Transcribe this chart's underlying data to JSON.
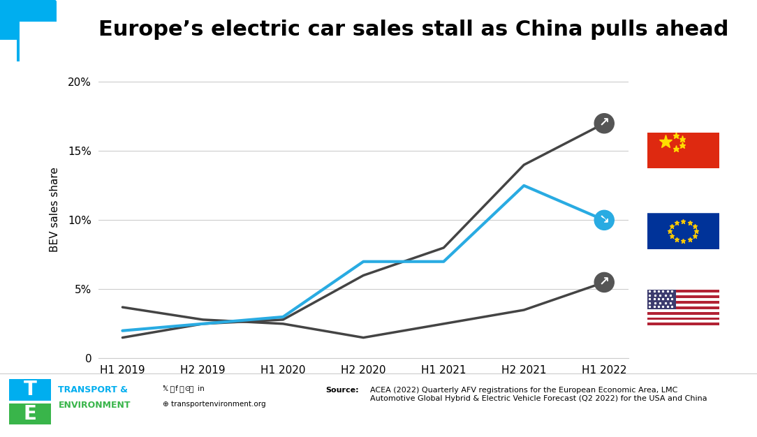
{
  "title": "Europe’s electric car sales stall as China pulls ahead",
  "ylabel": "BEV sales share",
  "x_labels": [
    "H1 2019",
    "H2 2019",
    "H1 2020",
    "H2 2020",
    "H1 2021",
    "H2 2021",
    "H1 2022"
  ],
  "china": [
    1.5,
    2.5,
    2.8,
    6.0,
    8.0,
    14.0,
    17.0
  ],
  "eu": [
    2.0,
    2.5,
    3.0,
    7.0,
    7.0,
    12.5,
    10.0
  ],
  "us": [
    3.7,
    2.8,
    2.5,
    1.5,
    2.5,
    3.5,
    5.5
  ],
  "china_color": "#444444",
  "eu_color": "#29ABE2",
  "us_color": "#444444",
  "yticks": [
    0,
    5,
    10,
    15,
    20
  ],
  "ylim": [
    0,
    21.5
  ],
  "source_bold": "Source:",
  "source_text": " ACEA (2022) Quarterly AFV registrations for the European Economic Area, LMC\nAutomotive Global Hybrid & Electric Vehicle Forecast (Q2 2022) for the USA and China",
  "title_fontsize": 22,
  "axis_label_fontsize": 11,
  "tick_fontsize": 11,
  "te_cyan": "#00AEEF",
  "te_green": "#39B54A"
}
